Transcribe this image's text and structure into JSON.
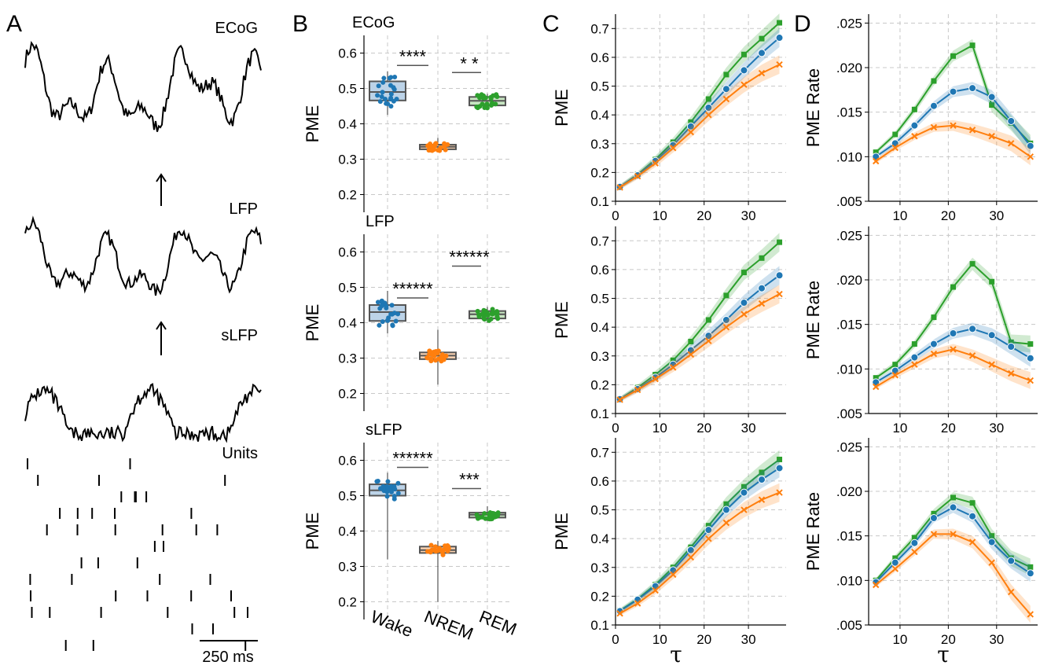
{
  "colors": {
    "wake": "#1f77b4",
    "nrem": "#ff7f0e",
    "rem": "#2ca02c",
    "grid": "#c8c8c8",
    "trace": "#000000"
  },
  "panel_letters": [
    "A",
    "B",
    "C",
    "D"
  ],
  "panel_a": {
    "trace_labels": [
      "ECoG",
      "LFP",
      "sLFP",
      "Units"
    ],
    "scale_bar_label": "250 ms"
  },
  "panel_b": {
    "ylabel": "PME",
    "yticks": [
      "0.2",
      "0.3",
      "0.4",
      "0.5",
      "0.6"
    ],
    "xticks": [
      "Wake",
      "NREM",
      "REM"
    ],
    "rows": [
      {
        "title": "ECoG",
        "boxes": [
          {
            "q1": 0.466,
            "med": 0.49,
            "q3": 0.52,
            "lo": 0.425,
            "hi": 0.548
          },
          {
            "q1": 0.328,
            "med": 0.335,
            "q3": 0.341,
            "lo": 0.321,
            "hi": 0.36
          },
          {
            "q1": 0.452,
            "med": 0.465,
            "q3": 0.476,
            "lo": 0.442,
            "hi": 0.485
          }
        ],
        "sig": [
          "****",
          "* *"
        ]
      },
      {
        "title": "LFP",
        "boxes": [
          {
            "q1": 0.405,
            "med": 0.43,
            "q3": 0.45,
            "lo": 0.37,
            "hi": 0.49
          },
          {
            "q1": 0.297,
            "med": 0.307,
            "q3": 0.316,
            "lo": 0.225,
            "hi": 0.38
          },
          {
            "q1": 0.412,
            "med": 0.424,
            "q3": 0.433,
            "lo": 0.4,
            "hi": 0.445
          }
        ],
        "sig": [
          "******",
          "******"
        ]
      },
      {
        "title": "sLFP",
        "boxes": [
          {
            "q1": 0.5,
            "med": 0.515,
            "q3": 0.532,
            "lo": 0.32,
            "hi": 0.565
          },
          {
            "q1": 0.338,
            "med": 0.346,
            "q3": 0.356,
            "lo": 0.2,
            "hi": 0.372
          },
          {
            "q1": 0.438,
            "med": 0.446,
            "q3": 0.452,
            "lo": 0.428,
            "hi": 0.47
          }
        ],
        "sig": [
          "******",
          "***"
        ]
      }
    ]
  },
  "chart_data": [
    {
      "type": "line",
      "panel": "C",
      "xlabel": "τ",
      "ylabel": "PME",
      "xticks": [
        "0",
        "10",
        "20",
        "30"
      ],
      "yticks": [
        "0.1",
        "0.2",
        "0.3",
        "0.4",
        "0.5",
        "0.6",
        "0.7"
      ],
      "xlim": [
        0,
        38.5
      ],
      "ylim": [
        0.1,
        0.75
      ],
      "x": [
        1,
        5,
        9,
        13,
        17,
        21,
        25,
        29,
        33,
        37
      ],
      "rows": [
        {
          "series": [
            {
              "color": "#2ca02c",
              "marker": "square",
              "values": [
                0.15,
                0.193,
                0.245,
                0.305,
                0.375,
                0.455,
                0.54,
                0.61,
                0.665,
                0.72
              ]
            },
            {
              "color": "#1f77b4",
              "marker": "circle",
              "values": [
                0.15,
                0.19,
                0.24,
                0.295,
                0.36,
                0.425,
                0.49,
                0.555,
                0.615,
                0.668
              ]
            },
            {
              "color": "#ff7f0e",
              "marker": "x",
              "values": [
                0.148,
                0.187,
                0.232,
                0.285,
                0.34,
                0.4,
                0.455,
                0.505,
                0.545,
                0.575
              ]
            }
          ]
        },
        {
          "series": [
            {
              "color": "#2ca02c",
              "marker": "square",
              "values": [
                0.15,
                0.19,
                0.235,
                0.285,
                0.35,
                0.425,
                0.51,
                0.59,
                0.64,
                0.695
              ]
            },
            {
              "color": "#1f77b4",
              "marker": "circle",
              "values": [
                0.15,
                0.185,
                0.225,
                0.27,
                0.32,
                0.37,
                0.425,
                0.485,
                0.535,
                0.58
              ]
            },
            {
              "color": "#ff7f0e",
              "marker": "x",
              "values": [
                0.148,
                0.182,
                0.22,
                0.26,
                0.305,
                0.352,
                0.4,
                0.445,
                0.482,
                0.515
              ]
            }
          ]
        },
        {
          "series": [
            {
              "color": "#2ca02c",
              "marker": "square",
              "values": [
                0.15,
                0.19,
                0.24,
                0.3,
                0.37,
                0.445,
                0.52,
                0.58,
                0.63,
                0.675
              ]
            },
            {
              "color": "#1f77b4",
              "marker": "circle",
              "values": [
                0.148,
                0.188,
                0.235,
                0.29,
                0.36,
                0.43,
                0.5,
                0.56,
                0.605,
                0.645
              ]
            },
            {
              "color": "#ff7f0e",
              "marker": "x",
              "values": [
                0.14,
                0.175,
                0.22,
                0.275,
                0.335,
                0.4,
                0.455,
                0.5,
                0.535,
                0.56
              ]
            }
          ]
        }
      ]
    },
    {
      "type": "line",
      "panel": "D",
      "xlabel": "τ",
      "ylabel": "PME Rate",
      "xticks": [
        "10",
        "20",
        "30"
      ],
      "yticks": [
        ".005",
        ".010",
        ".015",
        ".020",
        ".025"
      ],
      "xlim": [
        3.5,
        38.5
      ],
      "ylim": [
        0.005,
        0.026
      ],
      "x": [
        5,
        9,
        13,
        17,
        21,
        25,
        29,
        33,
        37
      ],
      "rows": [
        {
          "series": [
            {
              "color": "#2ca02c",
              "marker": "square",
              "values": [
                0.0105,
                0.0125,
                0.0153,
                0.0185,
                0.0213,
                0.0225,
                0.0158,
                0.0138,
                0.0115
              ]
            },
            {
              "color": "#1f77b4",
              "marker": "circle",
              "values": [
                0.01,
                0.0115,
                0.0135,
                0.0157,
                0.0173,
                0.0177,
                0.0167,
                0.014,
                0.0112
              ]
            },
            {
              "color": "#ff7f0e",
              "marker": "x",
              "values": [
                0.0095,
                0.011,
                0.0123,
                0.0133,
                0.0135,
                0.013,
                0.0123,
                0.0115,
                0.01
              ]
            }
          ]
        },
        {
          "series": [
            {
              "color": "#2ca02c",
              "marker": "square",
              "values": [
                0.009,
                0.0105,
                0.0128,
                0.0158,
                0.0192,
                0.0218,
                0.0198,
                0.013,
                0.0128
              ]
            },
            {
              "color": "#1f77b4",
              "marker": "circle",
              "values": [
                0.0085,
                0.0098,
                0.0113,
                0.0128,
                0.014,
                0.0145,
                0.0138,
                0.0125,
                0.0112
              ]
            },
            {
              "color": "#ff7f0e",
              "marker": "x",
              "values": [
                0.008,
                0.0093,
                0.0105,
                0.0117,
                0.0122,
                0.0115,
                0.0105,
                0.0095,
                0.0087
              ]
            }
          ]
        },
        {
          "series": [
            {
              "color": "#2ca02c",
              "marker": "square",
              "values": [
                0.01,
                0.0125,
                0.0148,
                0.0175,
                0.0193,
                0.0187,
                0.015,
                0.0125,
                0.0115
              ]
            },
            {
              "color": "#1f77b4",
              "marker": "circle",
              "values": [
                0.0098,
                0.012,
                0.0142,
                0.017,
                0.0182,
                0.0172,
                0.0143,
                0.0122,
                0.0108
              ]
            },
            {
              "color": "#ff7f0e",
              "marker": "x",
              "values": [
                0.0095,
                0.0113,
                0.0132,
                0.0152,
                0.0152,
                0.0143,
                0.012,
                0.0087,
                0.0062
              ]
            }
          ]
        }
      ]
    }
  ]
}
